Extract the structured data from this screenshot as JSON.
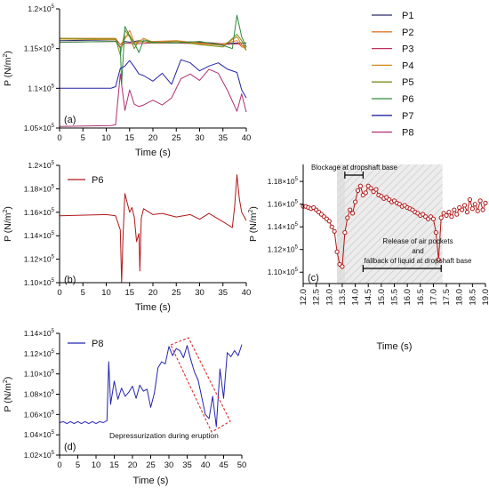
{
  "chart_data": [
    {
      "panel": "(a)",
      "type": "line",
      "xlabel": "Time (s)",
      "ylabel": "P (N/m²)",
      "xlim": [
        0,
        40
      ],
      "ylim": [
        105000,
        120000
      ],
      "xticks": [
        0,
        5,
        10,
        15,
        20,
        25,
        30,
        35,
        40
      ],
      "yticks": [
        {
          "v": 105000,
          "m": "1.05×10",
          "e": "5"
        },
        {
          "v": 110000,
          "m": "1.1×10",
          "e": "5"
        },
        {
          "v": 115000,
          "m": "1.15×10",
          "e": "5"
        },
        {
          "v": 120000,
          "m": "1.2×10",
          "e": "5"
        }
      ],
      "legend": "right",
      "series": [
        {
          "name": "P1",
          "color": "#2a2a6e",
          "x": [
            0,
            12,
            13,
            14,
            15,
            17,
            20,
            25,
            30,
            33,
            35,
            38,
            40
          ],
          "y": [
            116000,
            116100,
            115500,
            115900,
            115800,
            116000,
            115700,
            115900,
            115800,
            115700,
            115600,
            115700,
            115700
          ]
        },
        {
          "name": "P2",
          "color": "#e07a2a",
          "x": [
            0,
            12,
            13,
            14,
            15,
            16,
            20,
            25,
            30,
            35,
            38,
            39,
            40
          ],
          "y": [
            116300,
            116300,
            115500,
            116200,
            117300,
            115800,
            115900,
            116000,
            115700,
            115600,
            116000,
            115200,
            115100
          ]
        },
        {
          "name": "P3",
          "color": "#c0305a",
          "x": [
            0,
            12,
            13,
            14,
            16,
            20,
            25,
            30,
            35,
            38,
            40
          ],
          "y": [
            115800,
            115900,
            115200,
            115700,
            115600,
            115700,
            115700,
            115600,
            115500,
            115600,
            115300
          ]
        },
        {
          "name": "P4",
          "color": "#d48a18",
          "x": [
            0,
            12,
            13,
            14,
            15,
            16,
            18,
            20,
            25,
            30,
            35,
            38,
            39,
            40
          ],
          "y": [
            116200,
            116100,
            115000,
            116500,
            116700,
            115500,
            116300,
            115800,
            115900,
            115600,
            115400,
            116500,
            115500,
            114800
          ]
        },
        {
          "name": "P5",
          "color": "#7a9020",
          "x": [
            0,
            12,
            13,
            14,
            15,
            16,
            17,
            20,
            25,
            30,
            35,
            38,
            39,
            40
          ],
          "y": [
            116300,
            116200,
            114200,
            117300,
            116500,
            115000,
            116000,
            115700,
            115900,
            115500,
            115200,
            116800,
            116000,
            114800
          ]
        },
        {
          "name": "P6",
          "color": "#2e8a3a",
          "x": [
            0,
            12,
            13,
            13.3,
            14,
            15,
            16,
            17,
            18,
            20,
            25,
            30,
            35,
            37,
            38,
            39,
            40
          ],
          "y": [
            115800,
            115900,
            115200,
            110500,
            117800,
            116600,
            115700,
            114500,
            116100,
            115800,
            115700,
            115900,
            115400,
            115000,
            119200,
            116500,
            115200
          ]
        },
        {
          "name": "P7",
          "color": "#2424a8",
          "x": [
            0,
            11,
            12,
            13,
            14,
            15,
            16,
            17,
            18,
            20,
            22,
            24,
            26,
            28,
            30,
            32,
            34,
            36,
            38,
            39,
            40
          ],
          "y": [
            110000,
            110000,
            110200,
            112500,
            112800,
            113500,
            112700,
            111800,
            111600,
            110900,
            111900,
            110500,
            113600,
            113200,
            112200,
            112800,
            113200,
            112400,
            112000,
            109800,
            108800
          ]
        },
        {
          "name": "P8",
          "color": "#b03070",
          "x": [
            0,
            11,
            12,
            13,
            14,
            15,
            16,
            17,
            18,
            20,
            22,
            24,
            26,
            28,
            30,
            32,
            34,
            36,
            38,
            39,
            40
          ],
          "y": [
            105200,
            105300,
            105400,
            111800,
            107200,
            109800,
            108000,
            107700,
            107900,
            108500,
            107900,
            108800,
            111200,
            111800,
            111000,
            112400,
            111900,
            109700,
            107100,
            109300,
            107000
          ]
        }
      ]
    },
    {
      "panel": "(b)",
      "type": "line",
      "xlabel": "Time (s)",
      "ylabel": "P (N/m²)",
      "xlim": [
        0,
        40
      ],
      "ylim": [
        110000,
        120000
      ],
      "xticks": [
        0,
        5,
        10,
        15,
        20,
        25,
        30,
        35,
        40
      ],
      "yticks": [
        {
          "v": 110000,
          "m": "1.10×10",
          "e": "5"
        },
        {
          "v": 112000,
          "m": "1.12×10",
          "e": "5"
        },
        {
          "v": 114000,
          "m": "1.14×10",
          "e": "5"
        },
        {
          "v": 116000,
          "m": "1.16×10",
          "e": "5"
        },
        {
          "v": 118000,
          "m": "1.18×10",
          "e": "5"
        },
        {
          "v": 120000,
          "m": "1.2×10",
          "e": "5"
        }
      ],
      "legend": "top-left",
      "series": [
        {
          "name": "P6",
          "color": "#b01818",
          "x": [
            0,
            10,
            12,
            13,
            13.3,
            13.6,
            14,
            14.5,
            15,
            15.5,
            16,
            16.5,
            17,
            17.2,
            17.5,
            18,
            20,
            22,
            25,
            28,
            30,
            32,
            35,
            37,
            37.5,
            38,
            38.5,
            39,
            40
          ],
          "y": [
            115700,
            115800,
            115700,
            114500,
            110000,
            114000,
            117600,
            116800,
            116000,
            116400,
            115600,
            113500,
            114200,
            111000,
            115500,
            116300,
            115800,
            115900,
            115600,
            115800,
            115400,
            115900,
            115200,
            114700,
            116500,
            119200,
            117200,
            116000,
            115300
          ]
        }
      ]
    },
    {
      "panel": "(c)",
      "type": "line",
      "xlabel": "Time (s)",
      "ylabel": "P (N/m²)",
      "xlim": [
        12.0,
        19.0
      ],
      "ylim": [
        109000,
        119500
      ],
      "xticks": [
        "12.0",
        "12.5",
        "13.0",
        "13.5",
        "14.0",
        "14.5",
        "15.0",
        "15.5",
        "16.0",
        "16.5",
        "17.0",
        "17.5",
        "18.0",
        "18.5",
        "19.0"
      ],
      "yticks": [
        {
          "v": 110000,
          "m": "1.10×10",
          "e": "5"
        },
        {
          "v": 112000,
          "m": "1.12×10",
          "e": "5"
        },
        {
          "v": 114000,
          "m": "1.14×10",
          "e": "5"
        },
        {
          "v": 116000,
          "m": "1.16×10",
          "e": "5"
        },
        {
          "v": 118000,
          "m": "1.18×10",
          "e": "5"
        }
      ],
      "annotations": [
        "Blockage at dropshaft base",
        "Release of air pockets",
        "and",
        "fallback of liquid at dropshaft base"
      ],
      "series": [
        {
          "name": "P6",
          "color": "#b01818",
          "x": [
            12.0,
            12.1,
            12.2,
            12.3,
            12.4,
            12.5,
            12.6,
            12.7,
            12.8,
            12.9,
            13.0,
            13.1,
            13.2,
            13.3,
            13.4,
            13.5,
            13.6,
            13.7,
            13.8,
            13.9,
            14.0,
            14.1,
            14.2,
            14.3,
            14.4,
            14.5,
            14.6,
            14.7,
            14.8,
            14.9,
            15.0,
            15.1,
            15.2,
            15.3,
            15.4,
            15.5,
            15.6,
            15.7,
            15.8,
            15.9,
            16.0,
            16.1,
            16.2,
            16.3,
            16.4,
            16.5,
            16.6,
            16.7,
            16.8,
            16.9,
            17.0,
            17.1,
            17.2,
            17.3,
            17.4,
            17.5,
            17.6,
            17.7,
            17.8,
            17.9,
            18.0,
            18.1,
            18.2,
            18.3,
            18.4,
            18.5,
            18.6,
            18.7,
            18.8,
            18.9,
            19.0
          ],
          "y": [
            115800,
            115800,
            115700,
            115600,
            115700,
            115500,
            115300,
            115100,
            114900,
            114700,
            114500,
            114000,
            113600,
            111800,
            110700,
            110500,
            113500,
            114800,
            115500,
            115200,
            116200,
            117200,
            117600,
            116800,
            117000,
            117600,
            117400,
            117100,
            117300,
            116800,
            116700,
            116500,
            116600,
            116400,
            116200,
            116300,
            116100,
            116000,
            115800,
            115900,
            115700,
            115600,
            115500,
            115300,
            115200,
            115000,
            115100,
            114900,
            114700,
            114900,
            114700,
            113500,
            111100,
            114800,
            115200,
            115000,
            115300,
            114900,
            115500,
            115100,
            115700,
            115500,
            115900,
            115300,
            116400,
            115600,
            116000,
            115400,
            116300,
            115500,
            116100
          ]
        }
      ]
    },
    {
      "panel": "(d)",
      "type": "line",
      "xlabel": "Time (s)",
      "ylabel": "P (N/m²)",
      "xlim": [
        0,
        50
      ],
      "ylim": [
        102000,
        114000
      ],
      "xticks": [
        0,
        5,
        10,
        15,
        20,
        25,
        30,
        35,
        40,
        45,
        50
      ],
      "yticks": [
        {
          "v": 102000,
          "m": "1.02×10",
          "e": "5"
        },
        {
          "v": 104000,
          "m": "1.04×10",
          "e": "5"
        },
        {
          "v": 106000,
          "m": "1.06×10",
          "e": "5"
        },
        {
          "v": 108000,
          "m": "1.08×10",
          "e": "5"
        },
        {
          "v": 110000,
          "m": "1.10×10",
          "e": "5"
        },
        {
          "v": 112000,
          "m": "1.12×10",
          "e": "5"
        },
        {
          "v": 114000,
          "m": "1.14×10",
          "e": "5"
        }
      ],
      "annotations": [
        "Depressurization during eruption"
      ],
      "legend": "top-left",
      "series": [
        {
          "name": "P8",
          "color": "#2424b0",
          "x": [
            0,
            1,
            2,
            3,
            4,
            5,
            6,
            7,
            8,
            9,
            10,
            11,
            12,
            13,
            13.5,
            14,
            15,
            16,
            17,
            18,
            19,
            20,
            21,
            22,
            23,
            24,
            25,
            26,
            27,
            28,
            29,
            30,
            31,
            32,
            33,
            34,
            35,
            36,
            37,
            38,
            39,
            40,
            41,
            42,
            43,
            44,
            45,
            46,
            47,
            48,
            49,
            50
          ],
          "y": [
            105200,
            105300,
            105100,
            105300,
            105100,
            105300,
            105100,
            105300,
            105100,
            105300,
            105100,
            105300,
            105200,
            105400,
            111200,
            107000,
            109300,
            107500,
            108600,
            107800,
            108200,
            108800,
            107600,
            108900,
            108300,
            108500,
            106700,
            108100,
            110600,
            111200,
            111000,
            112700,
            111800,
            112500,
            112300,
            111600,
            112800,
            111400,
            110200,
            109400,
            107700,
            106000,
            105600,
            107800,
            104800,
            110500,
            107600,
            112100,
            111700,
            112300,
            111800,
            112900
          ]
        }
      ]
    }
  ]
}
